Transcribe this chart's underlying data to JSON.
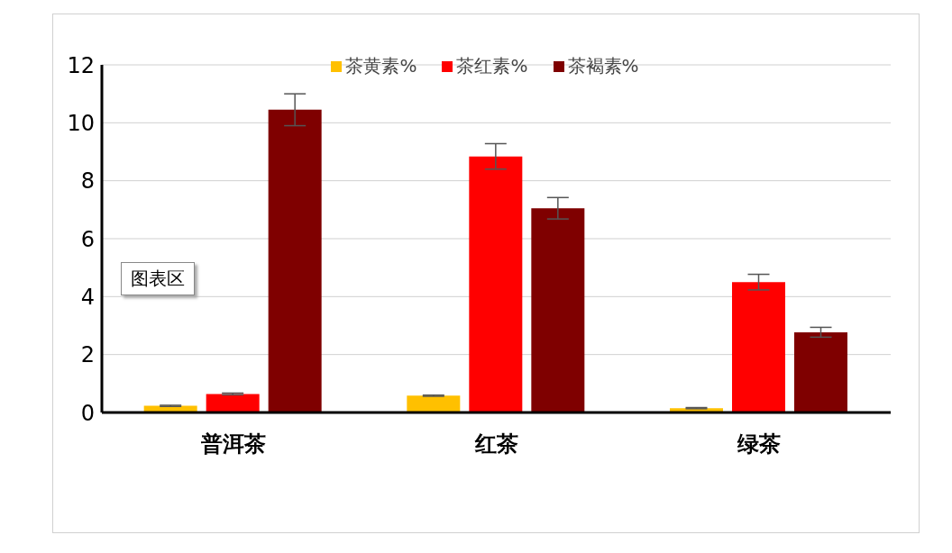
{
  "chart_data": {
    "type": "bar",
    "categories": [
      "普洱茶",
      "红茶",
      "绿茶"
    ],
    "series": [
      {
        "name": "茶黄素%",
        "color": "#ffc000",
        "values": [
          0.23,
          0.58,
          0.15
        ],
        "errors": [
          0.02,
          0.02,
          0.02
        ]
      },
      {
        "name": "茶红素%",
        "color": "#ff0000",
        "values": [
          0.64,
          8.84,
          4.5
        ],
        "errors": [
          0.03,
          0.44,
          0.27
        ]
      },
      {
        "name": "茶褐素%",
        "color": "#7f0000",
        "values": [
          10.45,
          7.05,
          2.77
        ],
        "errors": [
          0.55,
          0.37,
          0.17
        ]
      }
    ],
    "ylim": [
      0,
      12
    ],
    "yticks": [
      0,
      2,
      4,
      6,
      8,
      10,
      12
    ],
    "grid": "y",
    "legend": "top",
    "annotations": [
      "图表区"
    ]
  }
}
